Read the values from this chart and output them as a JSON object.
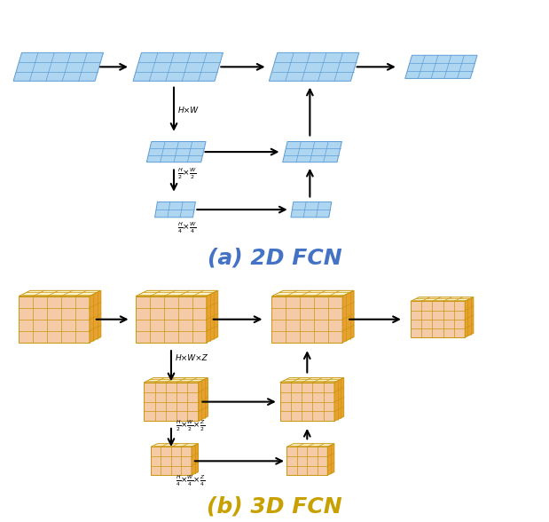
{
  "bg_color": "#ffffff",
  "title_2d": "(a) 2D FCN",
  "title_3d": "(b) 3D FCN",
  "title_fontsize": 18,
  "label_2d_color": "#4472C4",
  "label_3d_color": "#C8A000",
  "flat_color_face": "#AED6F1",
  "flat_color_edge": "#5B9BD5",
  "flat_color_top": "#D6EAF8",
  "cube_color_face": "#F5CBA7",
  "cube_color_edge": "#C8960C",
  "cube_color_top": "#FCF3CF",
  "label_HxW": "H×W",
  "label_H2xW2": "$\\frac{H}{2}$×$\\frac{W}{2}$",
  "label_H4xW4": "$\\frac{H}{4}$×$\\frac{W}{4}$",
  "label_HxWxZ": "H×W×Z",
  "label_H2xW2xZ2": "$\\frac{H}{2}$×$\\frac{W}{2}$×$\\frac{Z}{2}$",
  "label_H4xW4xZ4": "$\\frac{H}{4}$×$\\frac{W}{4}$×$\\frac{Z}{4}$"
}
